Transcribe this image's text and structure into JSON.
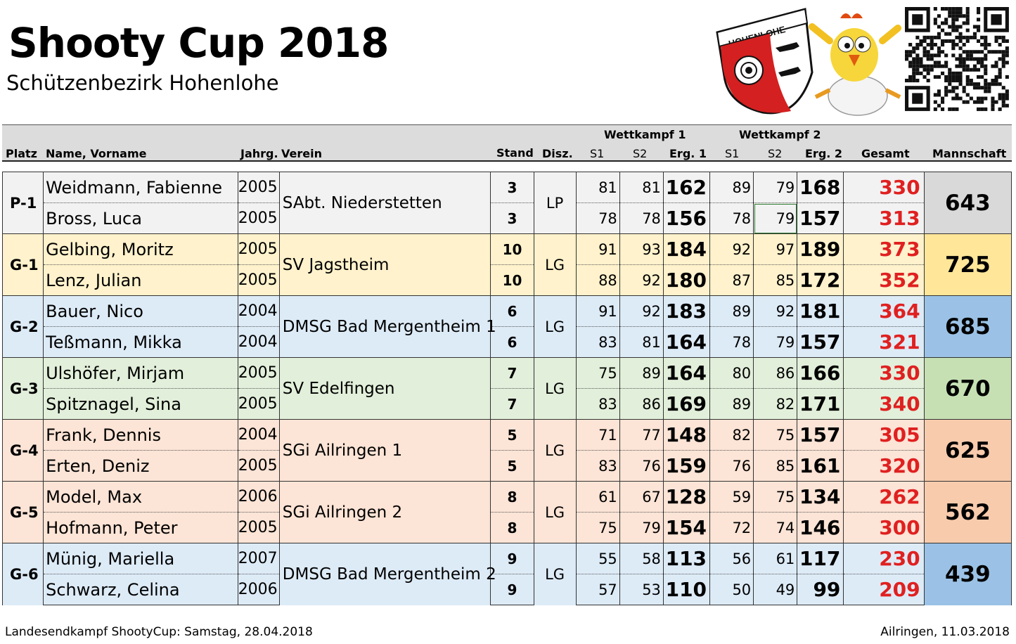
{
  "title": "Shooty Cup 2018",
  "subtitle": "Schützenbezirk Hohenlohe",
  "logo_text": "HOHENLOHE",
  "header": {
    "platz": "Platz",
    "name": "Name, Vorname",
    "jahrg": "Jahrg.",
    "verein": "Verein",
    "stand": "Stand",
    "disz": "Disz.",
    "wk1": "Wettkampf 1",
    "wk2": "Wettkampf 2",
    "s1": "S1",
    "s2": "S2",
    "erg1": "Erg. 1",
    "erg2": "Erg. 2",
    "gesamt": "Gesamt",
    "mannschaft": "Mannschaft"
  },
  "colors": {
    "P-1": "#f2f2f2",
    "G-1": "#fff2cc",
    "G-2": "#ddebf7",
    "G-3": "#e2efda",
    "G-4": "#fce4d6",
    "G-5": "#fce4d6",
    "G-6": "#ddebf7",
    "team_P-1": "#d9d9d9",
    "team_G-1": "#ffe699",
    "team_G-2": "#9bc2e6",
    "team_G-3": "#c6e0b4",
    "team_G-4": "#f8cbad",
    "team_G-5": "#f8cbad",
    "team_G-6": "#9bc2e6",
    "gesamt_text": "#e02020"
  },
  "teams": [
    {
      "platz": "P-1",
      "verein": "SAbt. Niederstetten",
      "disz": "LP",
      "mannschaft": "643",
      "shooters": [
        {
          "name": "Weidmann, Fabienne",
          "jahrg": "2005",
          "stand": "3",
          "wk1_s1": "81",
          "wk1_s2": "81",
          "erg1": "162",
          "wk2_s1": "89",
          "wk2_s2": "79",
          "erg2": "168",
          "gesamt": "330"
        },
        {
          "name": "Bross, Luca",
          "jahrg": "2005",
          "stand": "3",
          "wk1_s1": "78",
          "wk1_s2": "78",
          "erg1": "156",
          "wk2_s1": "78",
          "wk2_s2": "79",
          "erg2": "157",
          "gesamt": "313"
        }
      ]
    },
    {
      "platz": "G-1",
      "verein": "SV Jagstheim",
      "disz": "LG",
      "mannschaft": "725",
      "shooters": [
        {
          "name": "Gelbing, Moritz",
          "jahrg": "2005",
          "stand": "10",
          "wk1_s1": "91",
          "wk1_s2": "93",
          "erg1": "184",
          "wk2_s1": "92",
          "wk2_s2": "97",
          "erg2": "189",
          "gesamt": "373"
        },
        {
          "name": "Lenz, Julian",
          "jahrg": "2005",
          "stand": "10",
          "wk1_s1": "88",
          "wk1_s2": "92",
          "erg1": "180",
          "wk2_s1": "87",
          "wk2_s2": "85",
          "erg2": "172",
          "gesamt": "352"
        }
      ]
    },
    {
      "platz": "G-2",
      "verein": "DMSG Bad Mergentheim 1",
      "disz": "LG",
      "mannschaft": "685",
      "shooters": [
        {
          "name": "Bauer, Nico",
          "jahrg": "2004",
          "stand": "6",
          "wk1_s1": "91",
          "wk1_s2": "92",
          "erg1": "183",
          "wk2_s1": "89",
          "wk2_s2": "92",
          "erg2": "181",
          "gesamt": "364"
        },
        {
          "name": "Teßmann, Mikka",
          "jahrg": "2004",
          "stand": "6",
          "wk1_s1": "83",
          "wk1_s2": "81",
          "erg1": "164",
          "wk2_s1": "78",
          "wk2_s2": "79",
          "erg2": "157",
          "gesamt": "321"
        }
      ]
    },
    {
      "platz": "G-3",
      "verein": "SV Edelfingen",
      "disz": "LG",
      "mannschaft": "670",
      "shooters": [
        {
          "name": "Ulshöfer, Mirjam",
          "jahrg": "2005",
          "stand": "7",
          "wk1_s1": "75",
          "wk1_s2": "89",
          "erg1": "164",
          "wk2_s1": "80",
          "wk2_s2": "86",
          "erg2": "166",
          "gesamt": "330"
        },
        {
          "name": "Spitznagel, Sina",
          "jahrg": "2005",
          "stand": "7",
          "wk1_s1": "83",
          "wk1_s2": "86",
          "erg1": "169",
          "wk2_s1": "89",
          "wk2_s2": "82",
          "erg2": "171",
          "gesamt": "340"
        }
      ]
    },
    {
      "platz": "G-4",
      "verein": "SGi Ailringen 1",
      "disz": "LG",
      "mannschaft": "625",
      "shooters": [
        {
          "name": "Frank, Dennis",
          "jahrg": "2004",
          "stand": "5",
          "wk1_s1": "71",
          "wk1_s2": "77",
          "erg1": "148",
          "wk2_s1": "82",
          "wk2_s2": "75",
          "erg2": "157",
          "gesamt": "305"
        },
        {
          "name": "Erten, Deniz",
          "jahrg": "2005",
          "stand": "5",
          "wk1_s1": "83",
          "wk1_s2": "76",
          "erg1": "159",
          "wk2_s1": "76",
          "wk2_s2": "85",
          "erg2": "161",
          "gesamt": "320"
        }
      ]
    },
    {
      "platz": "G-5",
      "verein": "SGi Ailringen 2",
      "disz": "LG",
      "mannschaft": "562",
      "shooters": [
        {
          "name": "Model, Max",
          "jahrg": "2006",
          "stand": "8",
          "wk1_s1": "61",
          "wk1_s2": "67",
          "erg1": "128",
          "wk2_s1": "59",
          "wk2_s2": "75",
          "erg2": "134",
          "gesamt": "262"
        },
        {
          "name": "Hofmann, Peter",
          "jahrg": "2005",
          "stand": "8",
          "wk1_s1": "75",
          "wk1_s2": "79",
          "erg1": "154",
          "wk2_s1": "72",
          "wk2_s2": "74",
          "erg2": "146",
          "gesamt": "300"
        }
      ]
    },
    {
      "platz": "G-6",
      "verein": "DMSG Bad Mergentheim 2",
      "disz": "LG",
      "mannschaft": "439",
      "shooters": [
        {
          "name": "Münig, Mariella",
          "jahrg": "2007",
          "stand": "9",
          "wk1_s1": "55",
          "wk1_s2": "58",
          "erg1": "113",
          "wk2_s1": "56",
          "wk2_s2": "61",
          "erg2": "117",
          "gesamt": "230"
        },
        {
          "name": "Schwarz, Celina",
          "jahrg": "2006",
          "stand": "9",
          "wk1_s1": "57",
          "wk1_s2": "53",
          "erg1": "110",
          "wk2_s1": "50",
          "wk2_s2": "49",
          "erg2": "99",
          "gesamt": "209"
        }
      ]
    }
  ],
  "footer": {
    "left": "Landesendkampf ShootyCup: Samstag, 28.04.2018",
    "right": "Ailringen, 11.03.2018"
  }
}
